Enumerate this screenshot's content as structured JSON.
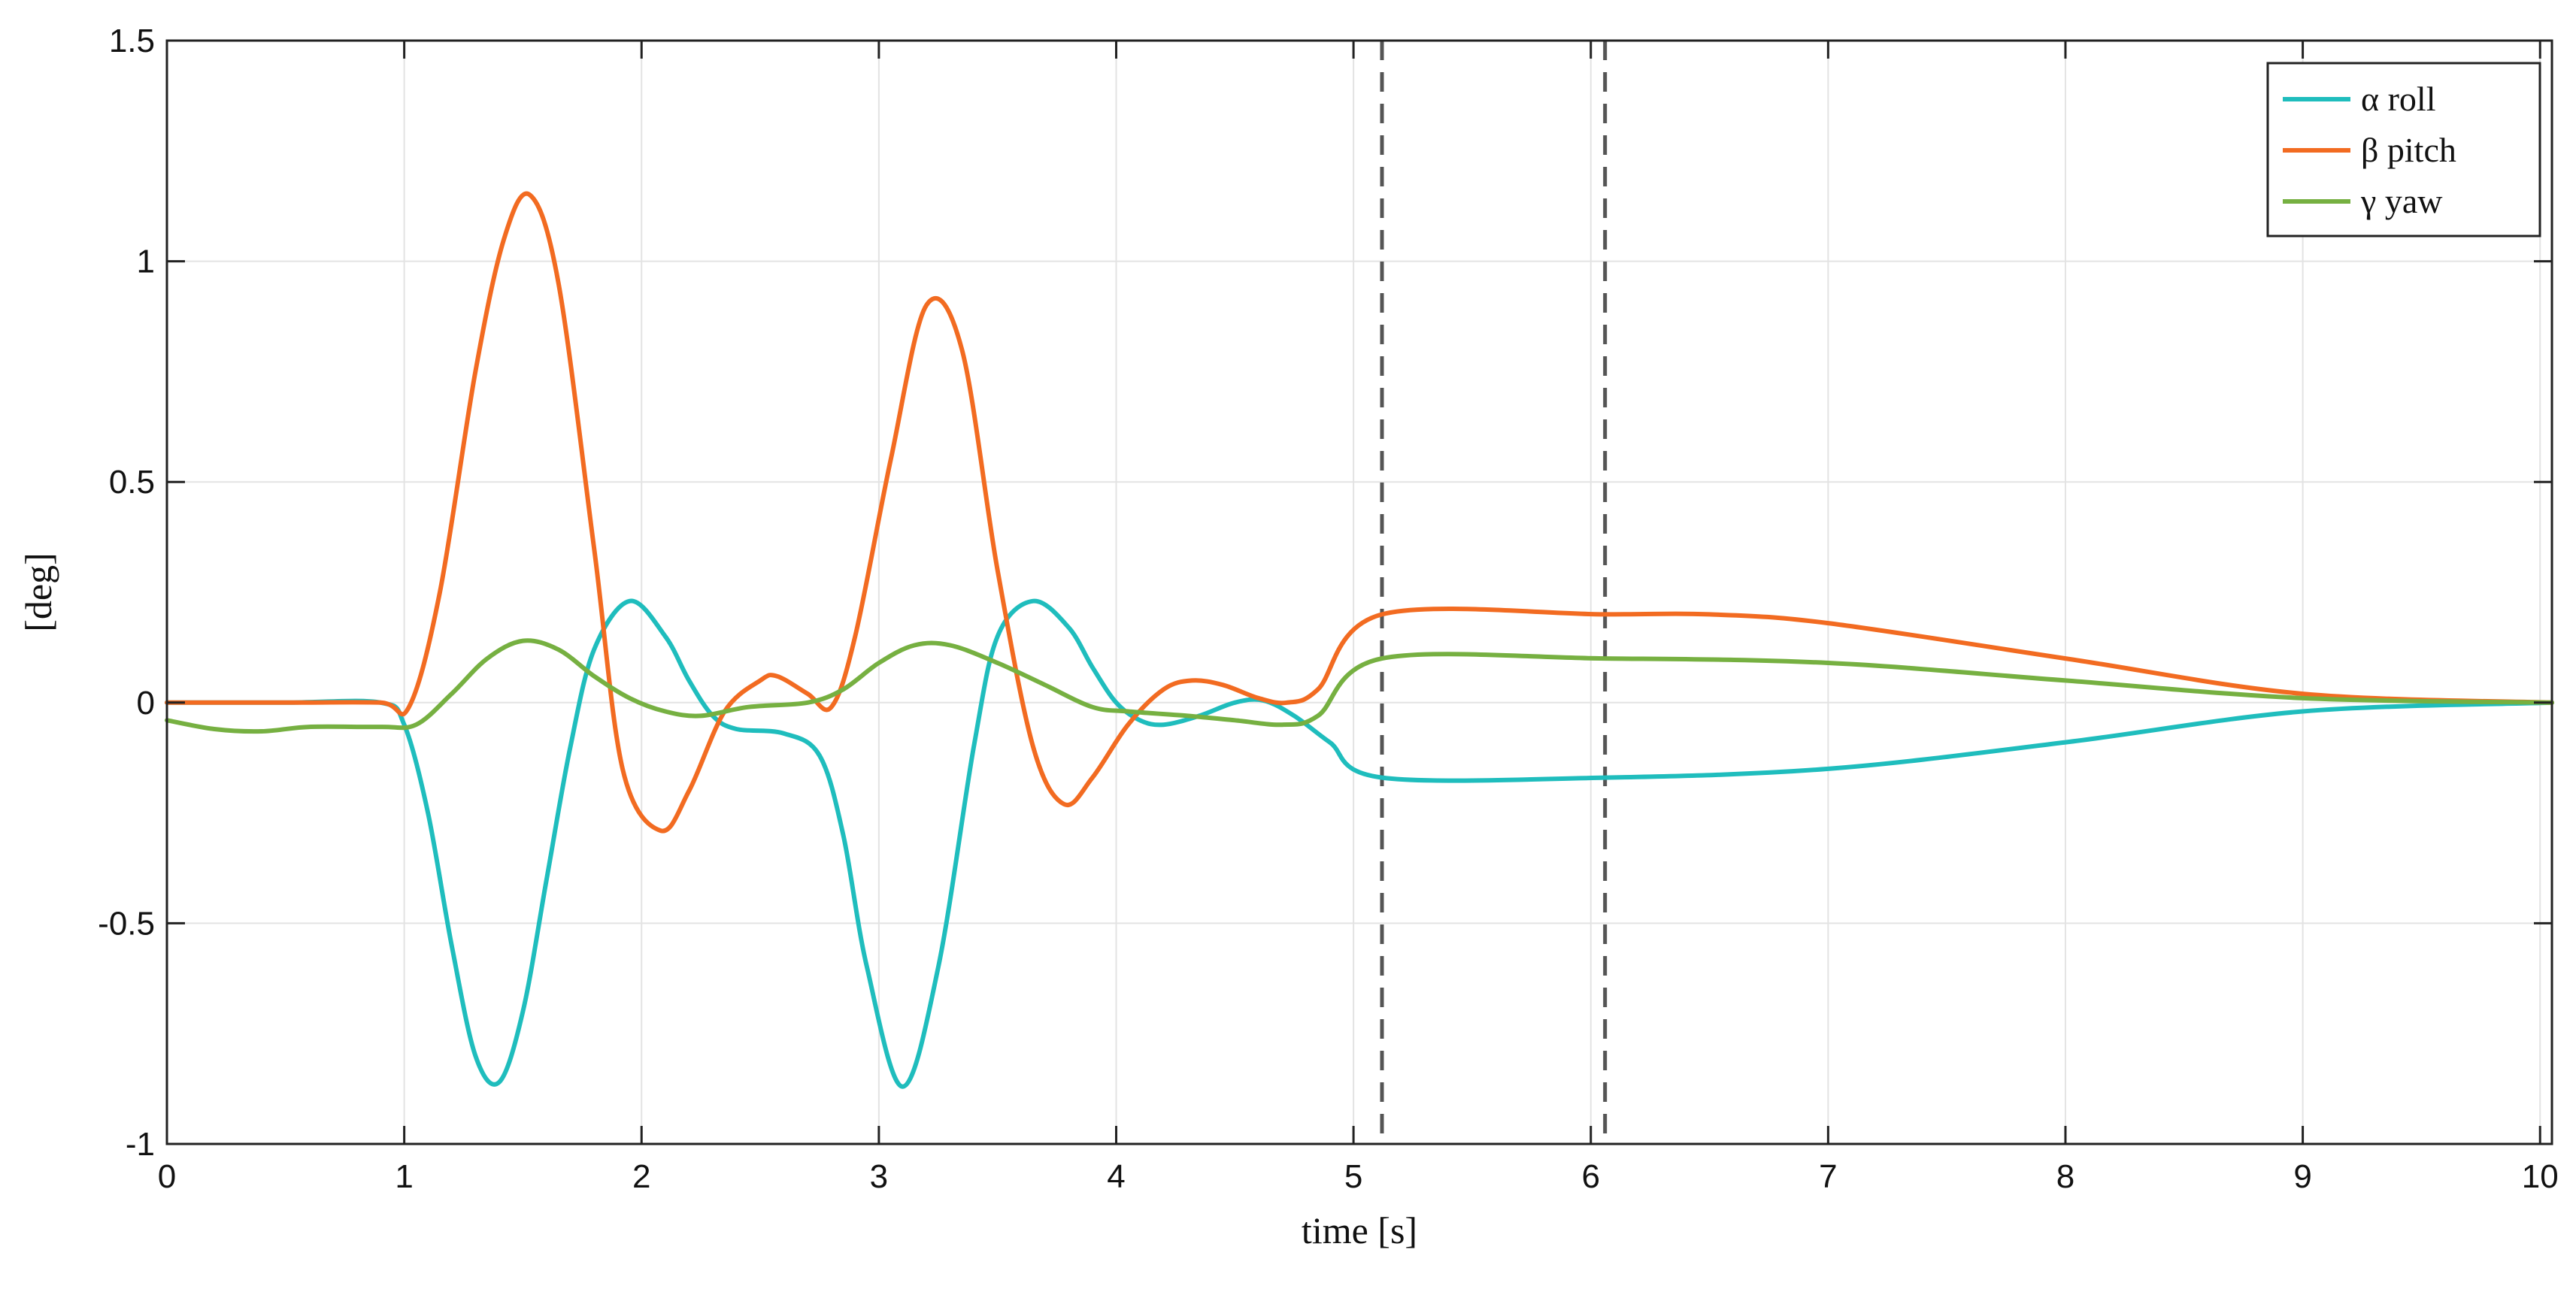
{
  "chart_data": {
    "type": "line",
    "xlabel": "time [s]",
    "ylabel": "[deg]",
    "xlim": [
      0,
      10.05
    ],
    "ylim": [
      -1,
      1.5
    ],
    "xticks": [
      0,
      1,
      2,
      3,
      4,
      5,
      6,
      7,
      8,
      9,
      10
    ],
    "xtick_labels": [
      "0",
      "1",
      "2",
      "3",
      "4",
      "5",
      "6",
      "7",
      "8",
      "9",
      "10"
    ],
    "yticks": [
      -1,
      -0.5,
      0,
      0.5,
      1,
      1.5
    ],
    "ytick_labels": [
      "-1",
      "-0.5",
      "0",
      "0.5",
      "1",
      "1.5"
    ],
    "grid": true,
    "legend_position": "top-right",
    "vertical_dashed_lines": [
      5.12,
      6.06
    ],
    "series": [
      {
        "name": "α roll",
        "color": "#1fbdbd",
        "x": [
          0,
          0.5,
          0.9,
          1.0,
          1.1,
          1.2,
          1.3,
          1.4,
          1.5,
          1.6,
          1.7,
          1.8,
          1.95,
          2.1,
          2.2,
          2.3,
          2.4,
          2.6,
          2.75,
          2.85,
          2.95,
          3.1,
          3.25,
          3.4,
          3.5,
          3.65,
          3.8,
          3.9,
          4.0,
          4.1,
          4.2,
          4.35,
          4.5,
          4.62,
          4.75,
          4.9,
          5.12,
          6.06,
          7.0,
          8.0,
          9.0,
          10.05
        ],
        "y": [
          0.0,
          0.0,
          0.0,
          -0.05,
          -0.25,
          -0.55,
          -0.8,
          -0.86,
          -0.7,
          -0.4,
          -0.1,
          0.12,
          0.23,
          0.15,
          0.05,
          -0.03,
          -0.06,
          -0.07,
          -0.12,
          -0.3,
          -0.6,
          -0.87,
          -0.6,
          -0.1,
          0.15,
          0.23,
          0.17,
          0.08,
          0.0,
          -0.04,
          -0.05,
          -0.03,
          0.0,
          0.005,
          -0.03,
          -0.09,
          -0.17,
          -0.17,
          -0.15,
          -0.09,
          -0.02,
          0.0
        ]
      },
      {
        "name": "β pitch",
        "color": "#f26b21",
        "x": [
          0,
          0.5,
          0.9,
          1.02,
          1.15,
          1.3,
          1.42,
          1.53,
          1.65,
          1.8,
          1.92,
          2.08,
          2.2,
          2.35,
          2.5,
          2.57,
          2.7,
          2.8,
          2.9,
          3.05,
          3.2,
          3.35,
          3.5,
          3.65,
          3.78,
          3.9,
          4.05,
          4.2,
          4.32,
          4.45,
          4.6,
          4.72,
          4.85,
          5.12,
          6.06,
          6.5,
          7.0,
          8.0,
          9.0,
          10.05
        ],
        "y": [
          0.0,
          0.0,
          0.0,
          -0.01,
          0.25,
          0.75,
          1.05,
          1.15,
          0.95,
          0.35,
          -0.15,
          -0.29,
          -0.2,
          -0.02,
          0.05,
          0.06,
          0.02,
          -0.01,
          0.15,
          0.55,
          0.9,
          0.8,
          0.3,
          -0.1,
          -0.23,
          -0.17,
          -0.05,
          0.03,
          0.05,
          0.04,
          0.01,
          0.0,
          0.03,
          0.2,
          0.2,
          0.2,
          0.18,
          0.1,
          0.02,
          0.0
        ]
      },
      {
        "name": "γ yaw",
        "color": "#76b041",
        "x": [
          0,
          0.2,
          0.4,
          0.6,
          0.9,
          1.05,
          1.2,
          1.35,
          1.5,
          1.65,
          1.8,
          1.95,
          2.1,
          2.25,
          2.45,
          2.7,
          2.85,
          3.0,
          3.15,
          3.3,
          3.5,
          3.7,
          3.9,
          4.05,
          4.3,
          4.5,
          4.7,
          4.85,
          5.12,
          6.06,
          7.0,
          8.0,
          9.0,
          10.05
        ],
        "y": [
          -0.04,
          -0.06,
          -0.065,
          -0.055,
          -0.055,
          -0.05,
          0.02,
          0.1,
          0.14,
          0.12,
          0.06,
          0.01,
          -0.02,
          -0.03,
          -0.01,
          0.0,
          0.03,
          0.09,
          0.13,
          0.13,
          0.09,
          0.04,
          -0.01,
          -0.02,
          -0.03,
          -0.04,
          -0.05,
          -0.03,
          0.1,
          0.1,
          0.09,
          0.05,
          0.01,
          0.0
        ]
      }
    ]
  }
}
